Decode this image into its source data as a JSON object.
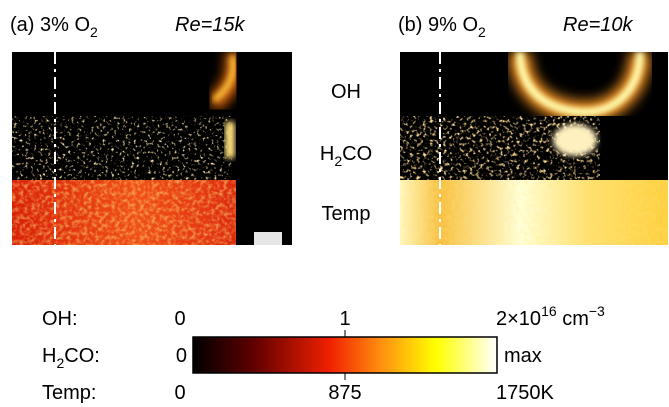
{
  "panels": [
    {
      "label": {
        "text": "(a) 3% O",
        "sub": "2"
      },
      "reynolds": "Re=15k"
    },
    {
      "label": {
        "text": "(b) 9% O",
        "sub": "2"
      },
      "reynolds": "Re=10k"
    }
  ],
  "row_labels": [
    {
      "text": "OH"
    },
    {
      "text": "H",
      "sub": "2",
      "rest": "CO"
    },
    {
      "text": "Temp"
    }
  ],
  "colorbar": {
    "rows": [
      {
        "name": {
          "text": "OH:"
        },
        "min": "0",
        "mid": "1",
        "max": {
          "text": "2×10",
          "sup": "16",
          "unit": " cm",
          "unit_sup": "−3"
        }
      },
      {
        "name": {
          "text": "H",
          "sub": "2",
          "rest": "CO:"
        },
        "min": "0",
        "max": "max"
      },
      {
        "name": {
          "text": "Temp:"
        },
        "min": "0",
        "mid": "875",
        "max": "1750K"
      }
    ]
  }
}
